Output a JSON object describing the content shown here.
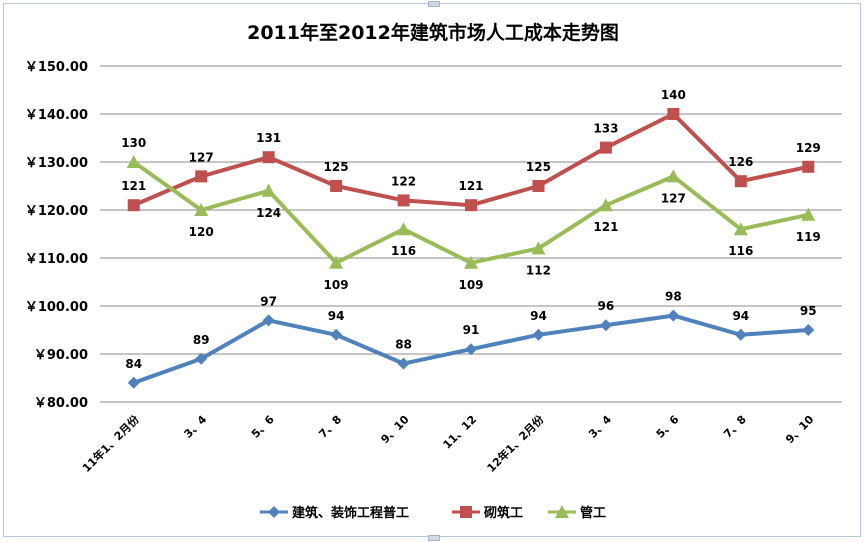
{
  "chart_data": {
    "type": "line",
    "title": "2011年至2012年建筑市场人工成本走势图",
    "categories": [
      "11年1、2月份",
      "3、4",
      "5、6",
      "7、8",
      "9、10",
      "11、12",
      "12年1、2月份",
      "3、4",
      "5、6",
      "7、8",
      "9、10"
    ],
    "y_ticks": [
      "￥80.00",
      "￥90.00",
      "￥100.00",
      "￥110.00",
      "￥120.00",
      "￥130.00",
      "￥140.00",
      "￥150.00"
    ],
    "ylim": [
      80,
      150
    ],
    "grid": true,
    "legend_position": "bottom",
    "series": [
      {
        "name": "建筑、装饰工程普工",
        "color": "#4f81bd",
        "marker": "diamond",
        "values": [
          84,
          89,
          97,
          94,
          88,
          91,
          94,
          96,
          98,
          94,
          95
        ]
      },
      {
        "name": "砌筑工",
        "color": "#c0504d",
        "marker": "square",
        "values": [
          121,
          127,
          131,
          125,
          122,
          121,
          125,
          133,
          140,
          126,
          129
        ]
      },
      {
        "name": "管工",
        "color": "#9bbb59",
        "marker": "triangle",
        "values": [
          130,
          120,
          124,
          109,
          116,
          109,
          112,
          121,
          127,
          116,
          119
        ]
      }
    ]
  }
}
